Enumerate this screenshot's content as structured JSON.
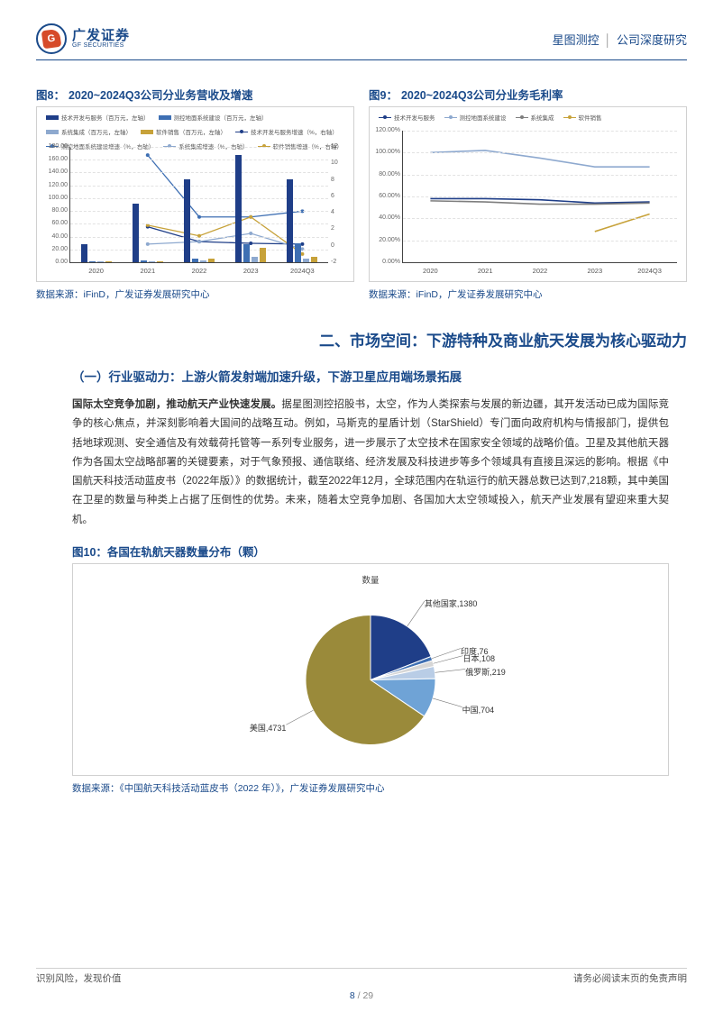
{
  "header": {
    "logo_cn": "广发证券",
    "logo_en": "GF SECURITIES",
    "logo_glyph": "G",
    "doc_company": "星图测控",
    "doc_type": "公司深度研究"
  },
  "colors": {
    "brand_blue": "#1a4a8a",
    "grid": "#e2e2e2",
    "axis": "#444444"
  },
  "chart8": {
    "title_num": "图8：",
    "title": "2020~2024Q3公司分业务营收及增速",
    "source_label": "数据来源：",
    "source": "iFinD，广发证券发展研究中心",
    "categories": [
      "2020",
      "2021",
      "2022",
      "2023",
      "2024Q3"
    ],
    "bars": {
      "s1": {
        "label": "技术开发与服务（百万元，左轴）",
        "color": "#1f3e88",
        "values": [
          28,
          92,
          130,
          168,
          130
        ]
      },
      "s2": {
        "label": "测控地面系统建设（百万元，左轴）",
        "color": "#3e6fb3",
        "values": [
          2,
          3,
          6,
          28,
          30
        ]
      },
      "s3": {
        "label": "系统集成（百万元，左轴）",
        "color": "#8ea9cf",
        "values": [
          2,
          2,
          3,
          8,
          5
        ]
      },
      "s4": {
        "label": "软件销售（百万元，左轴）",
        "color": "#c7a23a",
        "values": [
          1,
          2,
          5,
          22,
          9
        ]
      }
    },
    "lines": {
      "l1": {
        "label": "技术开发与服务增速（%，右轴）",
        "color": "#1f3e88",
        "values": [
          null,
          2.3,
          0.5,
          0.3,
          0.2
        ]
      },
      "l2": {
        "label": "测控地面系统建设增速（%，右轴）",
        "color": "#3e6fb3",
        "values": [
          null,
          11,
          3.5,
          3.5,
          4.2
        ]
      },
      "l3": {
        "label": "系统集成增速（%，右轴）",
        "color": "#8ea9cf",
        "values": [
          null,
          0.2,
          0.5,
          1.5,
          -0.4
        ]
      },
      "l4": {
        "label": "软件销售增速（%，右轴）",
        "color": "#c7a23a",
        "values": [
          null,
          2.5,
          1.2,
          3.5,
          -1.0
        ]
      }
    },
    "y_left": {
      "min": 0,
      "max": 180,
      "step": 20
    },
    "y_right": {
      "min": -2,
      "max": 12,
      "step": 2
    }
  },
  "chart9": {
    "title_num": "图9：",
    "title": "2020~2024Q3公司分业务毛利率",
    "source_label": "数据来源：",
    "source": "iFinD，广发证券发展研究中心",
    "categories": [
      "2020",
      "2021",
      "2022",
      "2023",
      "2024Q3"
    ],
    "series": {
      "a": {
        "label": "技术开发与服务",
        "color": "#1f3e88",
        "values": [
          58,
          58,
          57,
          54,
          55
        ]
      },
      "b": {
        "label": "测控地面系统建设",
        "color": "#8ea9cf",
        "values": [
          100,
          102,
          95,
          87,
          87
        ]
      },
      "c": {
        "label": "系统集成",
        "color": "#7e7e7e",
        "values": [
          56,
          55,
          53,
          53,
          54
        ]
      },
      "d": {
        "label": "软件销售",
        "color": "#c7a23a",
        "values": [
          null,
          null,
          null,
          28,
          44
        ]
      }
    },
    "y": {
      "min": 0,
      "max": 120,
      "step": 20,
      "fmt": "pct"
    }
  },
  "section": {
    "heading": "二、市场空间：下游特种及商业航天发展为核心驱动力",
    "subhead": "（一）行业驱动力：上游火箭发射端加速升级，下游卫星应用端场景拓展",
    "para_lead": "国际太空竞争加剧，推动航天产业快速发展。",
    "para_rest": "据星图测控招股书，太空，作为人类探索与发展的新边疆，其开发活动已成为国际竞争的核心焦点，并深刻影响着大国间的战略互动。例如，马斯克的星盾计划（StarShield）专门面向政府机构与情报部门，提供包括地球观测、安全通信及有效载荷托管等一系列专业服务，进一步展示了太空技术在国家安全领域的战略价值。卫星及其他航天器作为各国太空战略部署的关键要素，对于气象预报、通信联络、经济发展及科技进步等多个领域具有直接且深远的影响。根据《中国航天科技活动蓝皮书（2022年版）》的数据统计，截至2022年12月，全球范围内在轨运行的航天器总数已达到7,218颗，其中美国在卫星的数量与种类上占据了压倒性的优势。未来，随着太空竞争加剧、各国加大太空领域投入，航天产业发展有望迎来重大契机。"
  },
  "fig10": {
    "title_num": "图10：",
    "title": "各国在轨航天器数量分布（颗）",
    "qty_label": "数量",
    "slices": [
      {
        "label": "美国",
        "value": 4731,
        "color": "#9a8a3a"
      },
      {
        "label": "中国",
        "value": 704,
        "color": "#6fa3d6"
      },
      {
        "label": "俄罗斯",
        "value": 219,
        "color": "#b9cde6"
      },
      {
        "label": "日本",
        "value": 108,
        "color": "#d6d6d6"
      },
      {
        "label": "印度",
        "value": 76,
        "color": "#3e6fb3"
      },
      {
        "label": "其他国家",
        "value": 1380,
        "color": "#1f3e88"
      }
    ],
    "source_label": "数据来源：",
    "source": "《中国航天科技活动蓝皮书（2022 年）》，广发证券发展研究中心"
  },
  "footer": {
    "left": "识别风险，发现价值",
    "right": "请务必阅读末页的免责声明",
    "page": "8",
    "sep": " / ",
    "total": "29"
  }
}
